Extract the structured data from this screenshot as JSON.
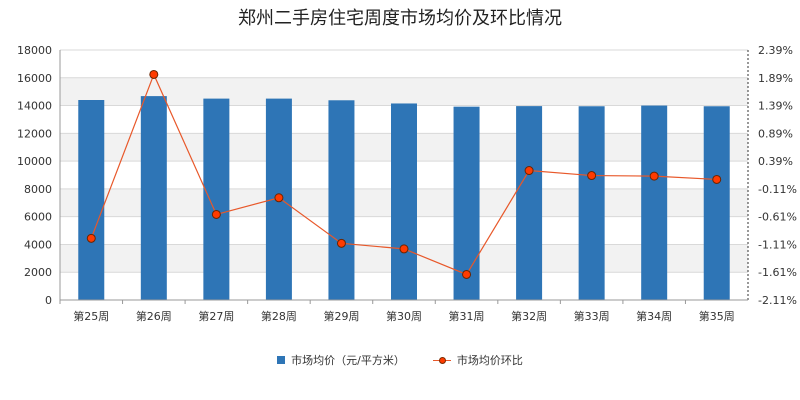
{
  "chart_data": {
    "type": "bar+line",
    "title": "郑州二手房住宅周度市场均价及环比情况",
    "categories": [
      "第25周",
      "第26周",
      "第27周",
      "第28周",
      "第29周",
      "第30周",
      "第31周",
      "第32周",
      "第33周",
      "第34周",
      "第35周"
    ],
    "series": [
      {
        "name": "市场均价（元/平方米）",
        "type": "bar",
        "axis": "left",
        "color": "#2e75b6",
        "values": [
          14400,
          14680,
          14500,
          14500,
          14380,
          14150,
          13920,
          13960,
          13950,
          14000,
          13950
        ]
      },
      {
        "name": "市场均价环比",
        "type": "line",
        "axis": "right",
        "color": "#e8582a",
        "marker_color": "#ff3b00",
        "values": [
          -1.0,
          1.95,
          -0.57,
          -0.27,
          -1.09,
          -1.19,
          -1.65,
          0.22,
          0.13,
          0.12,
          0.06
        ]
      }
    ],
    "y_left": {
      "ylim": [
        0,
        18000
      ],
      "ticks": [
        0,
        2000,
        4000,
        6000,
        8000,
        10000,
        12000,
        14000,
        16000,
        18000
      ],
      "tick_labels": [
        "0",
        "2000",
        "4000",
        "6000",
        "8000",
        "10000",
        "12000",
        "14000",
        "16000",
        "18000"
      ]
    },
    "y_right": {
      "ylim": [
        -2.11,
        2.39
      ],
      "ticks": [
        -2.11,
        -1.61,
        -1.11,
        -0.61,
        -0.11,
        0.39,
        0.89,
        1.39,
        1.89,
        2.39
      ],
      "tick_labels": [
        "-2.11%",
        "-1.61%",
        "-1.11%",
        "-0.61%",
        "-0.11%",
        "0.39%",
        "0.89%",
        "1.39%",
        "1.89%",
        "2.39%"
      ]
    },
    "grid": true,
    "legend_position": "bottom"
  }
}
